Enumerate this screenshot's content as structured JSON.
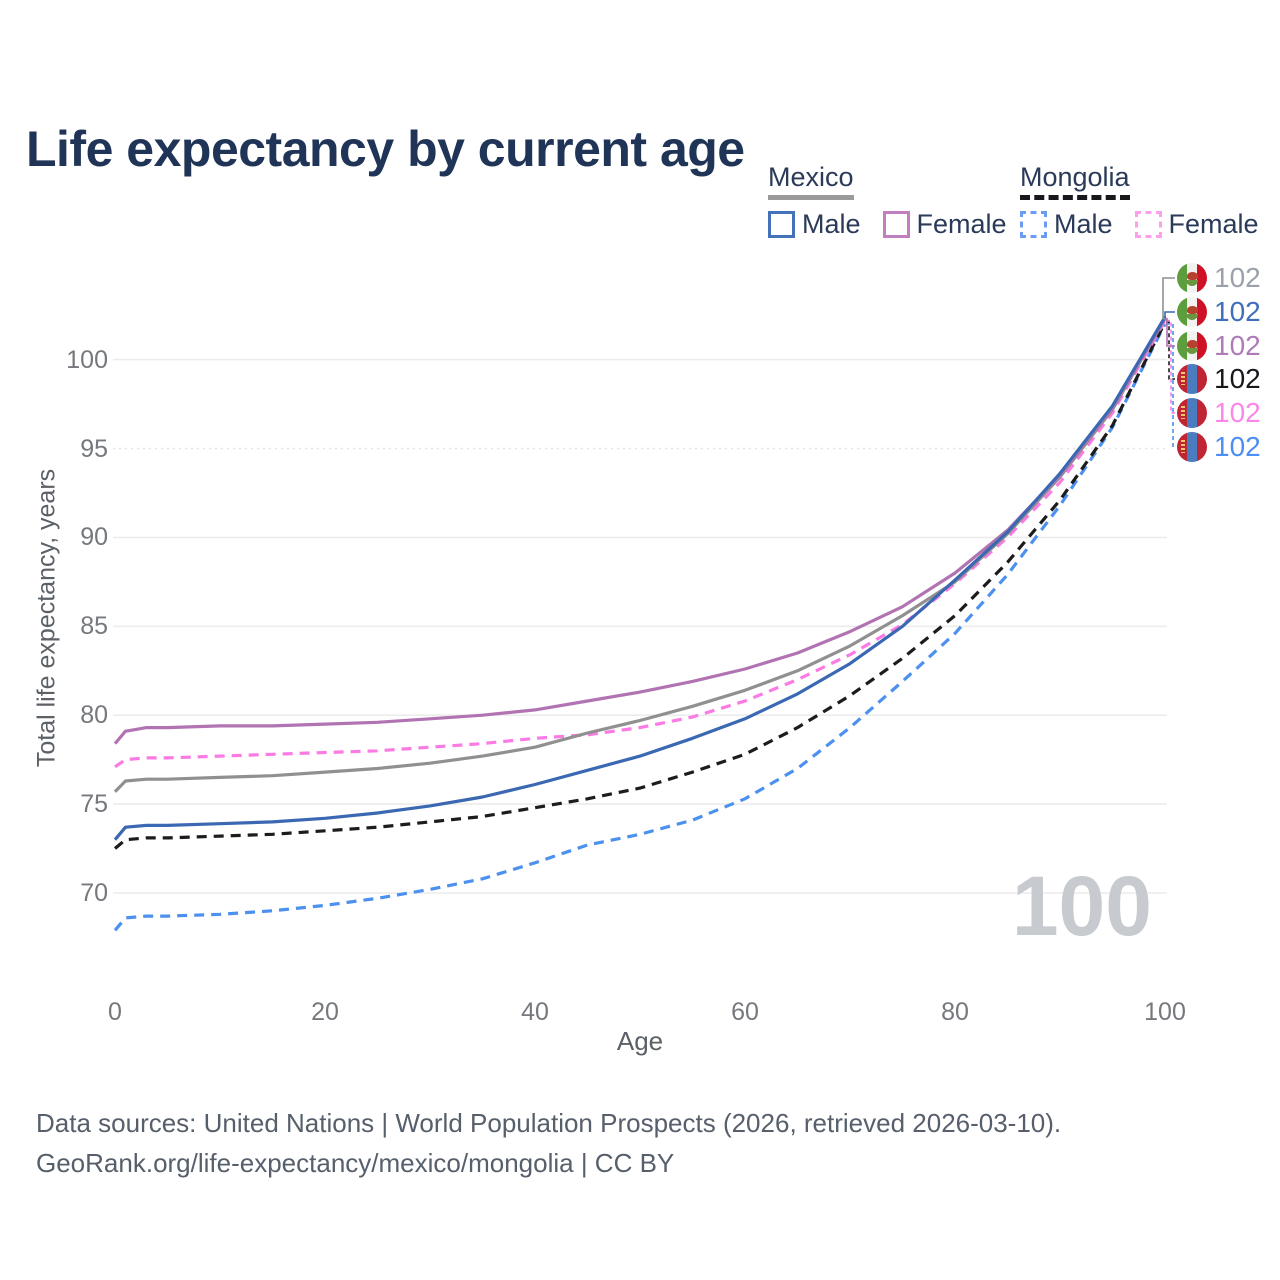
{
  "title": "Life expectancy by current age",
  "legend": {
    "groups": [
      {
        "country": "Mexico",
        "line_style": "solid",
        "underline_color": "#9a9a9a",
        "items": [
          {
            "label": "Male",
            "color": "#4472b8",
            "dashed": false
          },
          {
            "label": "Female",
            "color": "#c17fc0",
            "dashed": false
          }
        ]
      },
      {
        "country": "Mongolia",
        "line_style": "dashed",
        "underline_color": "#17181c",
        "items": [
          {
            "label": "Male",
            "color": "#6b9cf5",
            "dashed": true
          },
          {
            "label": "Female",
            "color": "#fda0ec",
            "dashed": true
          }
        ]
      }
    ]
  },
  "axes": {
    "y_title": "Total life expectancy, years",
    "x_title": "Age",
    "y_ticks": [
      70,
      75,
      80,
      85,
      90,
      95,
      100
    ],
    "x_ticks": [
      0,
      20,
      40,
      60,
      80,
      100
    ]
  },
  "watermark": "100",
  "right_labels": [
    {
      "series": "Mexico Both sexes",
      "flag": "mexico",
      "value": "102",
      "color": "#9aa1aa"
    },
    {
      "series": "Mexico Male",
      "flag": "mexico",
      "value": "102",
      "color": "#3f6fba"
    },
    {
      "series": "Mexico Female",
      "flag": "mexico",
      "value": "102",
      "color": "#ad7cb8"
    },
    {
      "series": "Mongolia Both sexes",
      "flag": "mongolia",
      "value": "102",
      "color": "#17181c"
    },
    {
      "series": "Mongolia Female",
      "flag": "mongolia",
      "value": "102",
      "color": "#fb86ea"
    },
    {
      "series": "Mongolia Male",
      "flag": "mongolia",
      "value": "102",
      "color": "#4b8ef5"
    }
  ],
  "footer": {
    "line1": "Data sources: United Nations | World Population Prospects (2026, retrieved 2026-03-10).",
    "line2": "GeoRank.org/life-expectancy/mexico/mongolia | CC BY"
  },
  "chart_data": {
    "type": "line",
    "title": "Life expectancy by current age",
    "xlabel": "Age",
    "ylabel": "Total life expectancy, years",
    "xlim": [
      0,
      100
    ],
    "ylim": [
      67.5,
      103
    ],
    "grid": "horizontal",
    "legend_position": "top-right",
    "x": [
      0,
      1,
      3,
      5,
      10,
      15,
      20,
      25,
      30,
      35,
      40,
      45,
      50,
      55,
      60,
      65,
      70,
      75,
      80,
      85,
      90,
      95,
      100
    ],
    "series": [
      {
        "name": "Mongolia Male",
        "country": "Mongolia",
        "sex": "Male",
        "color": "#4c90f0",
        "dashed": true,
        "end_label": "102",
        "label_row": 5,
        "values": [
          67.9,
          68.6,
          68.7,
          68.7,
          68.8,
          69.0,
          69.3,
          69.7,
          70.2,
          70.8,
          71.7,
          72.7,
          73.3,
          74.1,
          75.3,
          77.0,
          79.3,
          81.9,
          84.6,
          87.9,
          91.8,
          96.2,
          102.0
        ]
      },
      {
        "name": "Mongolia Both sexes",
        "country": "Mongolia",
        "sex": "Both",
        "color": "#1c1c1c",
        "dashed": true,
        "end_label": "102",
        "label_row": 3,
        "values": [
          72.5,
          73.0,
          73.1,
          73.1,
          73.2,
          73.3,
          73.5,
          73.7,
          74.0,
          74.3,
          74.8,
          75.3,
          75.9,
          76.8,
          77.8,
          79.3,
          81.1,
          83.2,
          85.6,
          88.6,
          92.1,
          96.3,
          102.1
        ]
      },
      {
        "name": "Mongolia Female",
        "country": "Mongolia",
        "sex": "Female",
        "color": "#fb7ae4",
        "dashed": true,
        "end_label": "102",
        "label_row": 4,
        "values": [
          77.1,
          77.5,
          77.6,
          77.6,
          77.7,
          77.8,
          77.9,
          78.0,
          78.2,
          78.4,
          78.7,
          78.9,
          79.3,
          79.9,
          80.8,
          82.0,
          83.4,
          85.1,
          87.4,
          90.0,
          93.1,
          97.0,
          102.2
        ]
      },
      {
        "name": "Mexico Both sexes",
        "country": "Mexico",
        "sex": "Both",
        "color": "#909090",
        "dashed": false,
        "end_label": "102",
        "label_row": 0,
        "values": [
          75.7,
          76.3,
          76.4,
          76.4,
          76.5,
          76.6,
          76.8,
          77.0,
          77.3,
          77.7,
          78.2,
          79.0,
          79.7,
          80.5,
          81.4,
          82.5,
          83.9,
          85.6,
          87.5,
          90.2,
          93.4,
          97.2,
          102.3
        ]
      },
      {
        "name": "Mexico Female",
        "country": "Mexico",
        "sex": "Female",
        "color": "#b173b1",
        "dashed": false,
        "end_label": "102",
        "label_row": 2,
        "values": [
          78.4,
          79.1,
          79.3,
          79.3,
          79.4,
          79.4,
          79.5,
          79.6,
          79.8,
          80.0,
          80.3,
          80.8,
          81.3,
          81.9,
          82.6,
          83.5,
          84.7,
          86.1,
          88.0,
          90.4,
          93.5,
          97.3,
          102.3
        ]
      },
      {
        "name": "Mexico Male",
        "country": "Mexico",
        "sex": "Male",
        "color": "#3a68b2",
        "dashed": false,
        "end_label": "102",
        "label_row": 1,
        "values": [
          73.0,
          73.7,
          73.8,
          73.8,
          73.9,
          74.0,
          74.2,
          74.5,
          74.9,
          75.4,
          76.1,
          76.9,
          77.7,
          78.7,
          79.8,
          81.2,
          82.9,
          85.0,
          87.6,
          90.3,
          93.6,
          97.4,
          102.4
        ]
      }
    ]
  }
}
